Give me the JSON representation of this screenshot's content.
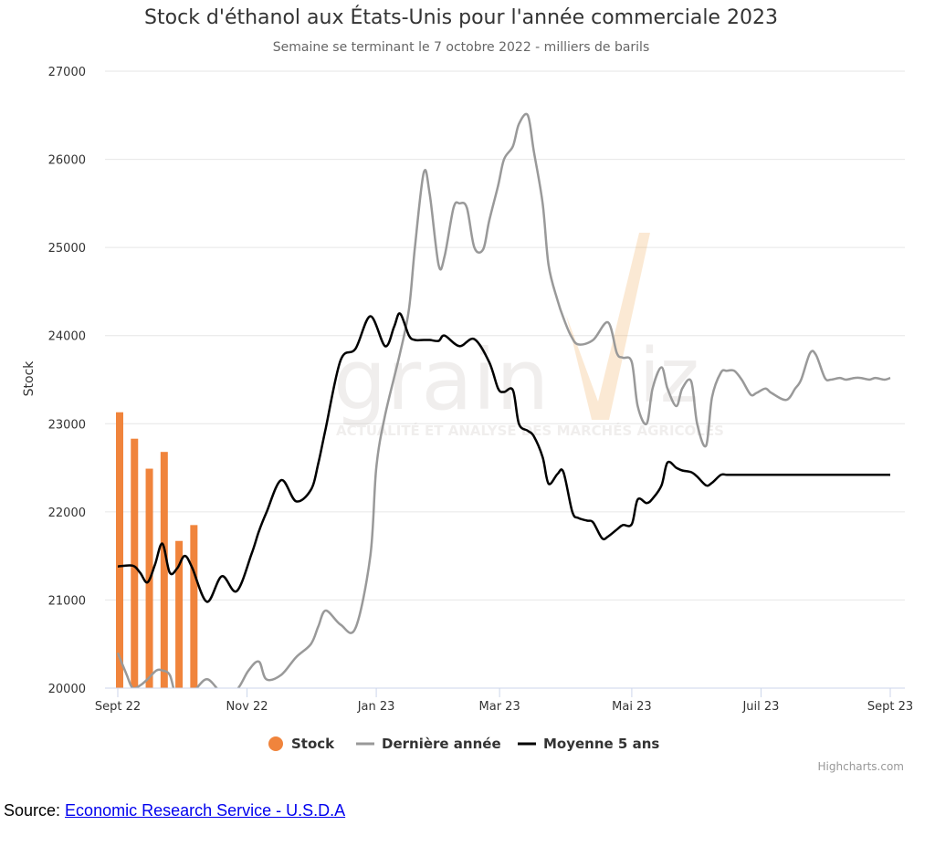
{
  "chart_data": {
    "type": "bar",
    "title": "Stock d'éthanol aux États-Unis pour l'année commerciale 2023",
    "subtitle": "Semaine se terminant le 7 octobre 2022 - milliers de barils",
    "ylabel": "Stock",
    "ylim": [
      20000,
      27000
    ],
    "yticks": [
      20000,
      21000,
      22000,
      23000,
      24000,
      25000,
      26000,
      27000
    ],
    "xlim": [
      0,
      52
    ],
    "xticks": [
      {
        "week": 0,
        "label": "Sept 22"
      },
      {
        "week": 8.7,
        "label": "Nov 22"
      },
      {
        "week": 17.4,
        "label": "Jan 23"
      },
      {
        "week": 25.7,
        "label": "Mar 23"
      },
      {
        "week": 34.6,
        "label": "Mai 23"
      },
      {
        "week": 43.3,
        "label": "Juil 23"
      },
      {
        "week": 52,
        "label": "Sept 23"
      }
    ],
    "grid": true,
    "legend_position": "bottom-center",
    "series": [
      {
        "name": "Stock",
        "type": "bar",
        "color": "#f0843c",
        "x": [
          0,
          1,
          2,
          3,
          4,
          5
        ],
        "values": [
          23130,
          22830,
          22490,
          22680,
          21670,
          21850
        ]
      },
      {
        "name": "Dernière année",
        "type": "line",
        "color": "#999999",
        "x": [
          0,
          0.6,
          1,
          1.5,
          2,
          2.6,
          3,
          3.5,
          4,
          5,
          6,
          7,
          8,
          8.8,
          9.5,
          10,
          11,
          12,
          13,
          13.5,
          14,
          15,
          16,
          17,
          17.4,
          18,
          19,
          19.6,
          20,
          20.6,
          21,
          21.6,
          22,
          22.6,
          23,
          23.5,
          24,
          24.6,
          25,
          25.6,
          26,
          26.6,
          27,
          27.6,
          28,
          28.6,
          29,
          29.6,
          30,
          30.5,
          31,
          32,
          33,
          33.6,
          34,
          34.6,
          35,
          35.6,
          36,
          36.6,
          37,
          37.6,
          38,
          38.6,
          39,
          39.6,
          40,
          40.6,
          41,
          41.5,
          42,
          42.6,
          43,
          43.6,
          44,
          45,
          45.6,
          46,
          46.6,
          47,
          47.6,
          48,
          48.6,
          49,
          49.6,
          50,
          50.6,
          51,
          51.6,
          52
        ],
        "values": [
          20400,
          20150,
          20000,
          20030,
          20100,
          20200,
          20200,
          20150,
          19900,
          19950,
          20100,
          19950,
          19980,
          20200,
          20300,
          20100,
          20150,
          20350,
          20500,
          20700,
          20880,
          20720,
          20680,
          21500,
          22500,
          23100,
          23800,
          24300,
          25000,
          25850,
          25600,
          24800,
          24900,
          25450,
          25500,
          25450,
          25000,
          24980,
          25300,
          25700,
          26000,
          26150,
          26400,
          26500,
          26100,
          25500,
          24800,
          24400,
          24200,
          24000,
          23900,
          23950,
          24150,
          23800,
          23750,
          23700,
          23200,
          23000,
          23400,
          23640,
          23400,
          23200,
          23400,
          23480,
          23000,
          22750,
          23300,
          23580,
          23600,
          23600,
          23500,
          23330,
          23350,
          23400,
          23350,
          23270,
          23400,
          23500,
          23800,
          23780,
          23520,
          23500,
          23520,
          23500,
          23520,
          23520,
          23500,
          23520,
          23500,
          23520
        ],
        "_note_trim": "trimmed"
      },
      {
        "name": "Moyenne 5 ans",
        "type": "line",
        "color": "#000000",
        "x": [
          0,
          1,
          1.5,
          2,
          2.5,
          3,
          3.5,
          4,
          4.5,
          5,
          6,
          7,
          8,
          9,
          9.5,
          10,
          11,
          12,
          13,
          13.5,
          14,
          15,
          16,
          17,
          18,
          18.6,
          19,
          19.6,
          20,
          20.6,
          21,
          21.6,
          22,
          23,
          24,
          25,
          25.6,
          26,
          26.6,
          27,
          27.6,
          28,
          28.6,
          29,
          29.6,
          30,
          30.6,
          31,
          31.6,
          32,
          32.6,
          33,
          33.6,
          34,
          34.6,
          35,
          35.6,
          36,
          36.6,
          37,
          37.6,
          38,
          38.6,
          39,
          39.6,
          40,
          40.6,
          41,
          41.6,
          42,
          42.6,
          43,
          43.6,
          44,
          44.6,
          45,
          45.6,
          46,
          46.6,
          47,
          47.6,
          48,
          48.6,
          49,
          49.6,
          50,
          50.6,
          51,
          51.6,
          52
        ],
        "values": [
          21380,
          21390,
          21310,
          21200,
          21400,
          21640,
          21310,
          21360,
          21500,
          21370,
          20980,
          21270,
          21100,
          21520,
          21780,
          21990,
          22360,
          22120,
          22250,
          22550,
          22950,
          23720,
          23850,
          24220,
          23880,
          24100,
          24250,
          24000,
          23950,
          23950,
          23950,
          23940,
          24000,
          23880,
          23960,
          23700,
          23400,
          23360,
          23380,
          23000,
          22920,
          22860,
          22620,
          22320,
          22430,
          22450,
          22000,
          21930,
          21900,
          21880,
          21700,
          21720,
          21800,
          21850,
          21860,
          22140,
          22100,
          22150,
          22300,
          22560,
          22500,
          22470,
          22450,
          22400,
          22300,
          22330,
          22420,
          22420,
          22420,
          22420,
          22420,
          22420,
          22420,
          22420,
          22420,
          22420,
          22420,
          22420,
          22420,
          22420,
          22420,
          22420,
          22420,
          22420,
          22420,
          22420,
          22420,
          22420,
          22420,
          22420
        ]
      }
    ]
  },
  "watermark": {
    "logo": "grainwiz",
    "tagline": "ACTUALITÉ ET ANALYSE DES MARCHÉS AGRICOLES"
  },
  "credits": "Highcharts.com",
  "source": {
    "prefix": "Source: ",
    "link_text": "Economic Research Service - U.S.D.A"
  },
  "colors": {
    "grid": "#e6e6e6",
    "axis_line": "#ccd6eb"
  }
}
